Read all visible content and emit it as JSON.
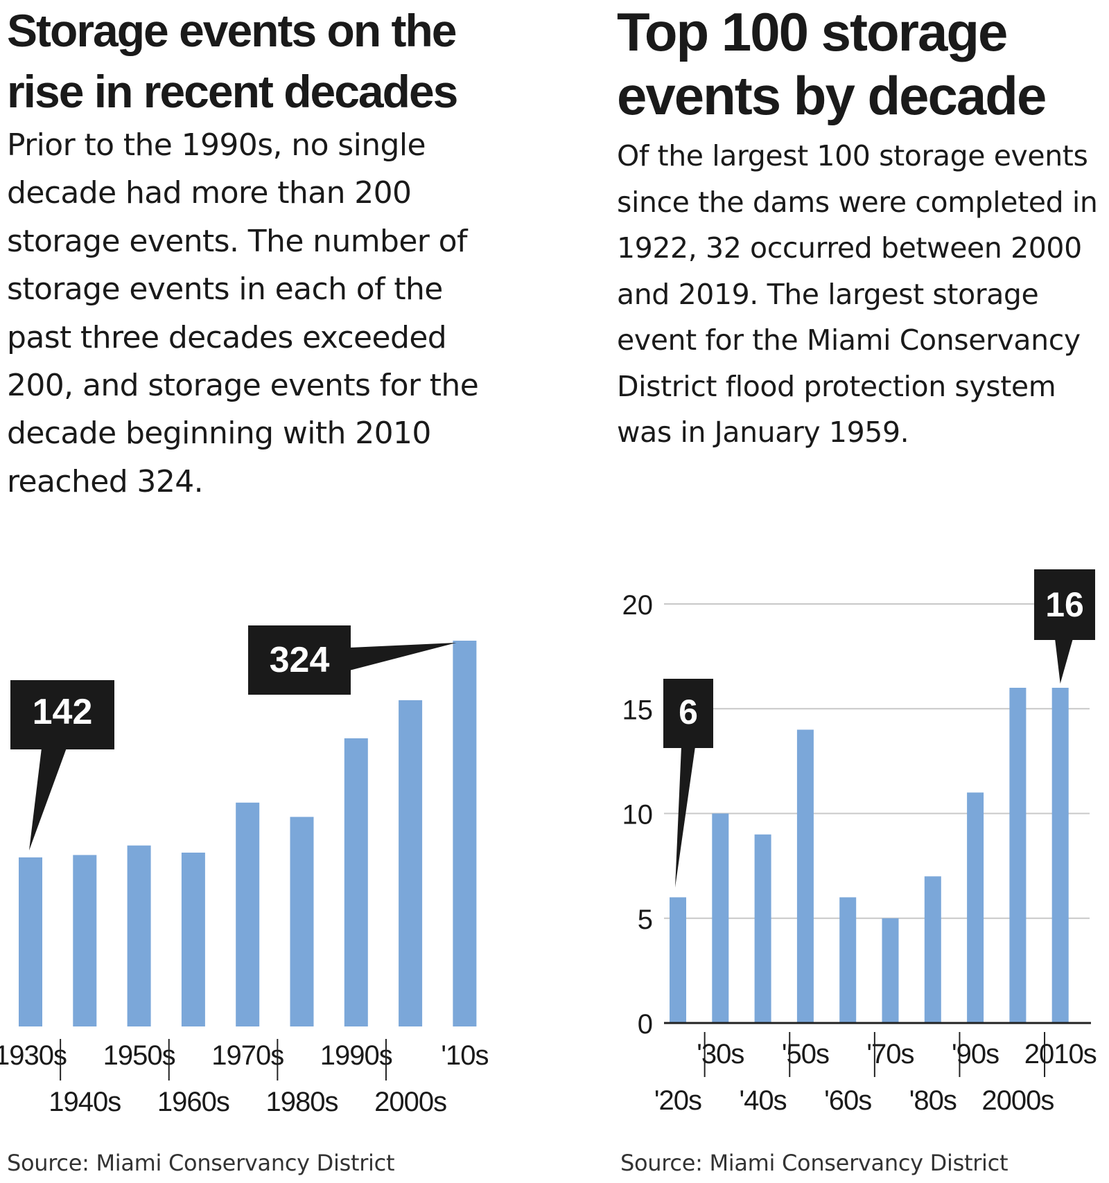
{
  "colors": {
    "bar": "#7ba7d9",
    "callout": "#1a1a1a",
    "callout_text": "#ffffff",
    "grid": "#c8c8c8",
    "text": "#1a1a1a"
  },
  "left": {
    "title": "Storage events on the rise in recent decades",
    "dek": "Prior to the 1990s, no single decade had more than 200 storage events. The number of storage events in each of the past three decades exceeded 200, and storage events for the decade beginning with 2010 reached 324.",
    "source": "Source: Miami Conservancy District"
  },
  "right": {
    "title": "Top 100 storage events by decade",
    "dek": "Of the largest 100 storage events since the dams were completed in 1922, 32 occurred between 2000 and 2019. The largest storage event for the Miami Conservancy District flood protection system was in January 1959.",
    "source": "Source: Miami Conservancy District"
  },
  "chart_data": [
    {
      "type": "bar",
      "title": "Storage events on the rise in recent decades",
      "categories": [
        "1930s",
        "1940s",
        "1950s",
        "1960s",
        "1970s",
        "1980s",
        "1990s",
        "2000s",
        "'10s"
      ],
      "values": [
        142,
        144,
        152,
        146,
        188,
        176,
        242,
        274,
        324
      ],
      "ylim": [
        0,
        324
      ],
      "grid": false,
      "xlabel": "",
      "ylabel": "",
      "annotations": [
        {
          "category": "1930s",
          "label": "142"
        },
        {
          "category": "'10s",
          "label": "324"
        }
      ]
    },
    {
      "type": "bar",
      "title": "Top 100 storage events by decade",
      "categories": [
        "'20s",
        "'30s",
        "'40s",
        "'50s",
        "'60s",
        "'70s",
        "'80s",
        "'90s",
        "2000s",
        "2010s"
      ],
      "values": [
        6,
        10,
        9,
        14,
        6,
        5,
        7,
        11,
        16,
        16
      ],
      "yticks": [
        "0",
        "5",
        "10",
        "15",
        "20"
      ],
      "ylim": [
        0,
        20
      ],
      "grid": true,
      "xlabel": "",
      "ylabel": "",
      "annotations": [
        {
          "category": "'20s",
          "label": "6"
        },
        {
          "category": "2010s",
          "label": "16"
        }
      ]
    }
  ]
}
